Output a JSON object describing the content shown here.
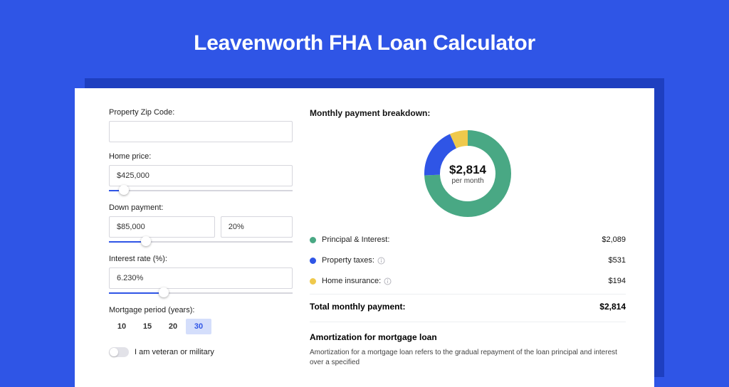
{
  "colors": {
    "page_bg": "#2f55e6",
    "panel_bg": "#ffffff",
    "shadow_bg": "#1e3fc0",
    "border": "#d6d6dd",
    "text": "#222222",
    "muted": "#444444",
    "slider_fill": "#2f55e6",
    "period_active_bg": "#d4defb",
    "period_active_fg": "#2f55e6"
  },
  "title": "Leavenworth FHA Loan Calculator",
  "form": {
    "zip": {
      "label": "Property Zip Code:",
      "value": ""
    },
    "home_price": {
      "label": "Home price:",
      "value": "$425,000",
      "slider_pct": 8
    },
    "down_payment": {
      "label": "Down payment:",
      "amount": "$85,000",
      "pct": "20%",
      "slider_pct": 20
    },
    "interest": {
      "label": "Interest rate (%):",
      "value": "6.230%",
      "slider_pct": 30
    },
    "period": {
      "label": "Mortgage period (years):",
      "options": [
        "10",
        "15",
        "20",
        "30"
      ],
      "active": "30"
    },
    "veteran": {
      "label": "I am veteran or military",
      "on": false
    }
  },
  "breakdown": {
    "title": "Monthly payment breakdown:",
    "center_value": "$2,814",
    "center_sub": "per month",
    "donut": {
      "segments": [
        {
          "name": "principal_interest",
          "value": 2089,
          "color": "#49a884",
          "pct": 74.2
        },
        {
          "name": "property_taxes",
          "value": 531,
          "color": "#2f55e6",
          "pct": 18.9
        },
        {
          "name": "home_insurance",
          "value": 194,
          "color": "#efc94c",
          "pct": 6.9
        }
      ],
      "stroke_width": 22
    },
    "rows": [
      {
        "label": "Principal & Interest:",
        "value": "$2,089",
        "color": "#49a884",
        "info": false
      },
      {
        "label": "Property taxes:",
        "value": "$531",
        "color": "#2f55e6",
        "info": true
      },
      {
        "label": "Home insurance:",
        "value": "$194",
        "color": "#efc94c",
        "info": true
      }
    ],
    "total_label": "Total monthly payment:",
    "total_value": "$2,814"
  },
  "amort": {
    "title": "Amortization for mortgage loan",
    "text": "Amortization for a mortgage loan refers to the gradual repayment of the loan principal and interest over a specified"
  }
}
